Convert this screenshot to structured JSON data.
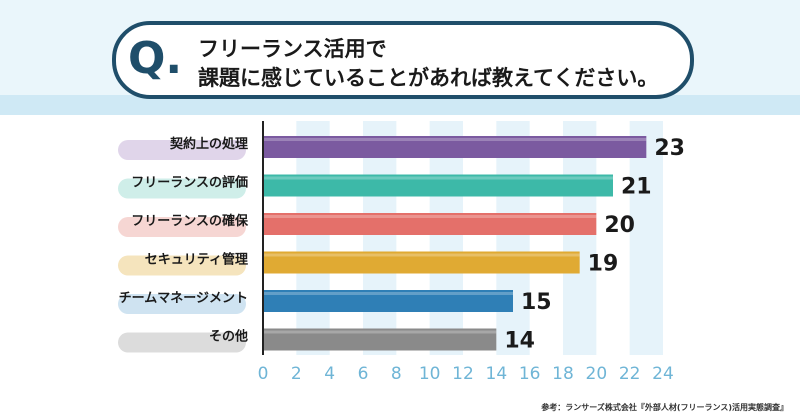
{
  "question": {
    "mark": "Q.",
    "line1": "フリーランス活用で",
    "line2": "課題に感じていることがあれば教えてください。"
  },
  "chart_data": {
    "type": "bar",
    "orientation": "horizontal",
    "categories": [
      "契約上の処理",
      "フリーランスの評価",
      "フリーランスの確保",
      "セキュリティ管理",
      "チームマネージメント",
      "その他"
    ],
    "values": [
      23,
      21,
      20,
      19,
      15,
      14
    ],
    "colors": [
      "#7b5aa0",
      "#3db9a8",
      "#e4706a",
      "#e0aa33",
      "#2f7fb6",
      "#8a8a8a"
    ],
    "label_pill_colors": [
      "#e0d5ea",
      "#cfeee9",
      "#f6d6d3",
      "#f5e4bd",
      "#cfe3f1",
      "#dcdcdc"
    ],
    "xlim": [
      0,
      24
    ],
    "xticks": [
      "0",
      "2",
      "4",
      "6",
      "8",
      "10",
      "12",
      "14",
      "16",
      "18",
      "20",
      "22",
      "24"
    ],
    "grid": true
  },
  "source": "参考：ランサーズ株式会社『外部人材(フリーランス)活用実態調査』"
}
